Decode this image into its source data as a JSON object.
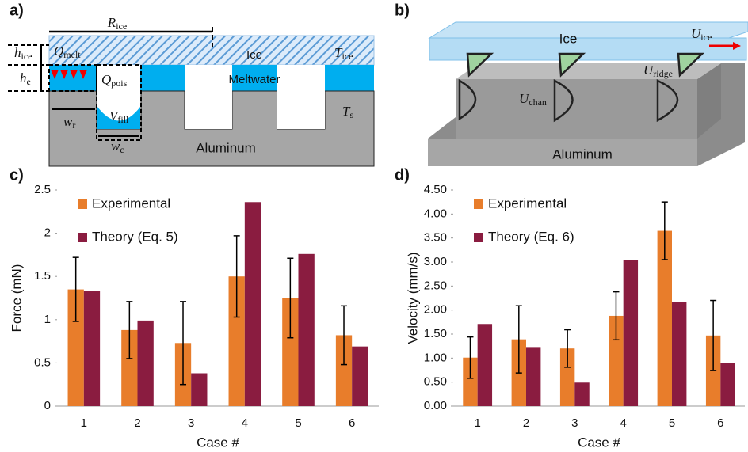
{
  "panel_a": {
    "label": "a)",
    "R_ice": {
      "symbol": "R",
      "sub": "ice"
    },
    "h_ice": {
      "symbol": "h",
      "sub": "ice"
    },
    "h_e": {
      "symbol": "h",
      "sub": "e"
    },
    "Q_melt": {
      "symbol": "Q",
      "sub": "melt"
    },
    "ice": "Ice",
    "T_ice": {
      "symbol": "T",
      "sub": "ice"
    },
    "Q_pois": {
      "symbol": "Q",
      "sub": "pois"
    },
    "meltwater": "Meltwater",
    "T_s": {
      "symbol": "T",
      "sub": "s"
    },
    "w_r": {
      "symbol": "w",
      "sub": "r"
    },
    "V_fill": {
      "symbol": "V",
      "sub": "fill"
    },
    "w_c": {
      "symbol": "w",
      "sub": "c"
    },
    "aluminum": "Aluminum"
  },
  "panel_b": {
    "label": "b)",
    "ice": "Ice",
    "U_ice": {
      "symbol": "U",
      "sub": "ice"
    },
    "U_ridge": {
      "symbol": "U",
      "sub": "ridge"
    },
    "U_chan": {
      "symbol": "U",
      "sub": "chan"
    },
    "aluminum": "Aluminum"
  },
  "chart_data": [
    {
      "type": "bar",
      "panel_label": "c)",
      "x_label": "Case #",
      "y_label": "Force (mN)",
      "categories": [
        "1",
        "2",
        "3",
        "4",
        "5",
        "6"
      ],
      "series": [
        {
          "name": "Experimental",
          "color": "#e87d2b",
          "values": [
            1.35,
            0.88,
            0.73,
            1.5,
            1.25,
            0.82
          ],
          "errors": [
            0.37,
            0.33,
            0.48,
            0.47,
            0.46,
            0.34
          ]
        },
        {
          "name": "Theory (Eq. 5)",
          "color": "#8a1c40",
          "values": [
            1.33,
            0.99,
            0.38,
            2.36,
            1.76,
            0.69
          ]
        }
      ],
      "ylim": [
        0,
        2.5
      ],
      "yticks": [
        0,
        0.5,
        1,
        1.5,
        2,
        2.5
      ],
      "legend": "upper left"
    },
    {
      "type": "bar",
      "panel_label": "d)",
      "x_label": "Case #",
      "y_label": "Velocity (mm/s)",
      "categories": [
        "1",
        "2",
        "3",
        "4",
        "5",
        "6"
      ],
      "series": [
        {
          "name": "Experimental",
          "color": "#e87d2b",
          "values": [
            1.01,
            1.39,
            1.2,
            1.88,
            3.65,
            1.47
          ],
          "errors": [
            0.43,
            0.7,
            0.39,
            0.5,
            0.6,
            0.73
          ]
        },
        {
          "name": "Theory (Eq. 6)",
          "color": "#8a1c40",
          "values": [
            1.71,
            1.23,
            0.49,
            3.04,
            2.17,
            0.89
          ]
        }
      ],
      "ylim": [
        0,
        4.5
      ],
      "yticks": [
        {
          "value": 0,
          "label": "0.00"
        },
        {
          "value": 0.5,
          "label": "0.50"
        },
        {
          "value": 1,
          "label": "1.00"
        },
        {
          "value": 1.5,
          "label": "1.50"
        },
        {
          "value": 2,
          "label": "2.00"
        },
        {
          "value": 2.5,
          "label": "2.50"
        },
        {
          "value": 3,
          "label": "3.00"
        },
        {
          "value": 3.5,
          "label": "3.50"
        },
        {
          "value": 4,
          "label": "4.00"
        },
        {
          "value": 4.5,
          "label": "4.50"
        }
      ],
      "legend": "upper left"
    }
  ]
}
